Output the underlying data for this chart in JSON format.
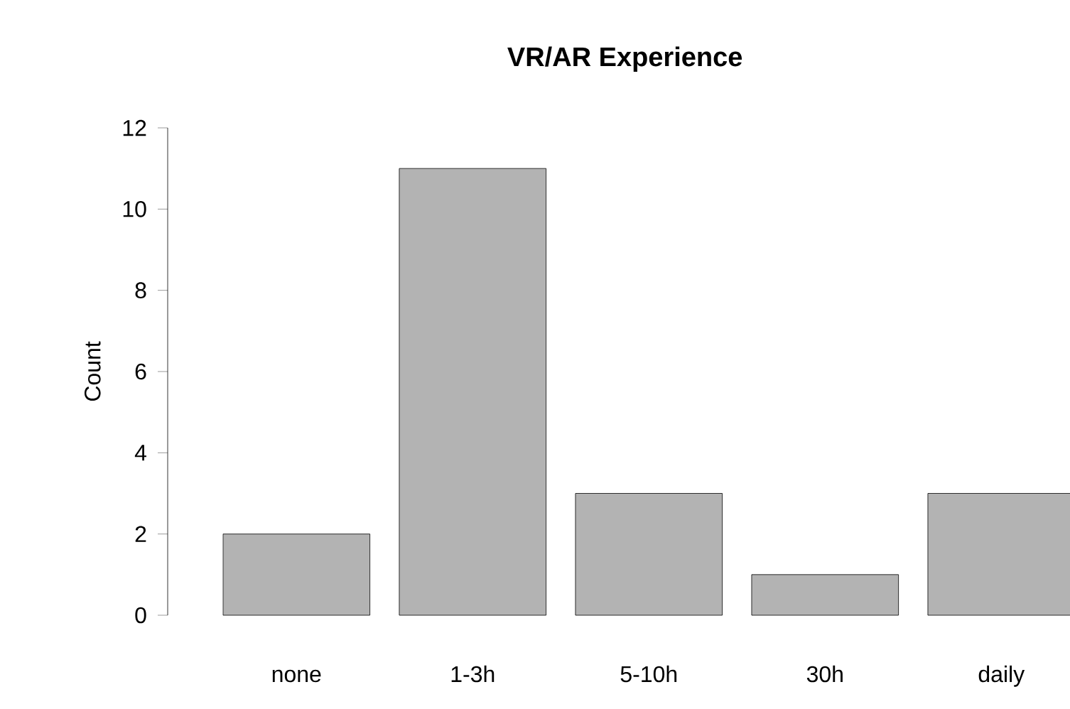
{
  "chart_data": {
    "type": "bar",
    "title": "VR/AR Experience",
    "ylabel": "Count",
    "categories": [
      "none",
      "1-3h",
      "5-10h",
      "30h",
      "daily"
    ],
    "values": [
      2,
      11,
      3,
      1,
      3
    ],
    "color": "#b3b3b3",
    "ylim": [
      0,
      12
    ],
    "yticks": [
      0,
      2,
      4,
      6,
      8,
      10,
      12
    ],
    "grid": false
  }
}
